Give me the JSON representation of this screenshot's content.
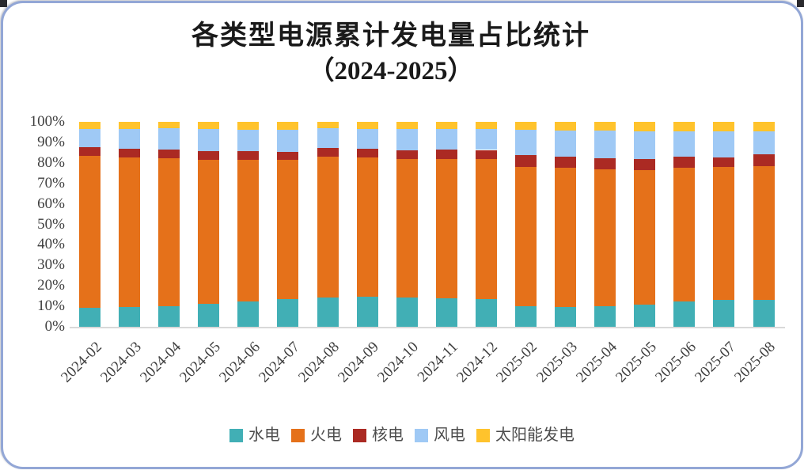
{
  "title": {
    "line1": "各类型电源累计发电量占比统计",
    "line2": "（2024-2025）"
  },
  "chart_data": {
    "type": "bar",
    "stacked": true,
    "stack_unit": "percent",
    "title": "各类型电源累计发电量占比统计（2024-2025）",
    "xlabel": "",
    "ylabel": "",
    "ylim": [
      0,
      100
    ],
    "grid": false,
    "legend_position": "bottom",
    "x_tick_rotation": -45,
    "y_ticks": [
      "0%",
      "10%",
      "20%",
      "30%",
      "40%",
      "50%",
      "60%",
      "70%",
      "80%",
      "90%",
      "100%"
    ],
    "categories": [
      "2024-02",
      "2024-03",
      "2024-04",
      "2024-05",
      "2024-06",
      "2024-07",
      "2024-08",
      "2024-09",
      "2024-10",
      "2024-11",
      "2024-12",
      "2025-02",
      "2025-03",
      "2025-04",
      "2025-05",
      "2025-06",
      "2025-07",
      "2025-08"
    ],
    "series": [
      {
        "key": "hydro",
        "name": "水电",
        "color": "#41afb5",
        "values": [
          9.3,
          9.5,
          10.2,
          11.2,
          12.2,
          13.6,
          14.4,
          14.7,
          14.4,
          13.8,
          13.5,
          9.9,
          9.7,
          10.2,
          10.9,
          12.2,
          13.1,
          13.1
        ]
      },
      {
        "key": "thermal",
        "name": "火电",
        "color": "#e5711a",
        "values": [
          74.0,
          73.1,
          72.0,
          70.4,
          69.1,
          67.7,
          68.5,
          67.8,
          67.6,
          68.1,
          68.3,
          68.2,
          67.8,
          66.6,
          65.7,
          65.3,
          65.0,
          65.2
        ]
      },
      {
        "key": "nuclear",
        "name": "核电",
        "color": "#ab2a23",
        "values": [
          4.2,
          4.2,
          4.4,
          4.2,
          4.4,
          4.1,
          4.2,
          4.3,
          4.1,
          4.5,
          4.5,
          5.8,
          5.4,
          5.4,
          5.1,
          5.6,
          4.4,
          5.7
        ]
      },
      {
        "key": "wind",
        "name": "风电",
        "color": "#9fc9f5",
        "values": [
          9.0,
          9.8,
          10.2,
          10.6,
          10.5,
          10.8,
          9.7,
          9.9,
          10.5,
          10.2,
          10.2,
          12.3,
          13.0,
          13.7,
          13.8,
          12.1,
          12.7,
          11.2
        ]
      },
      {
        "key": "solar",
        "name": "太阳能发电",
        "color": "#ffc32c",
        "values": [
          3.5,
          3.4,
          3.2,
          3.6,
          3.8,
          3.8,
          3.2,
          3.3,
          3.4,
          3.4,
          3.5,
          3.8,
          4.1,
          4.1,
          4.5,
          4.8,
          4.8,
          4.8
        ]
      }
    ]
  },
  "colors": {
    "card_border": "#93a7d6",
    "axis_line": "#d9d9d9",
    "axis_text": "#3f3f3f",
    "legend_text": "#4d4d4d",
    "title_text": "#1a1a1a",
    "background": "#ffffff"
  }
}
